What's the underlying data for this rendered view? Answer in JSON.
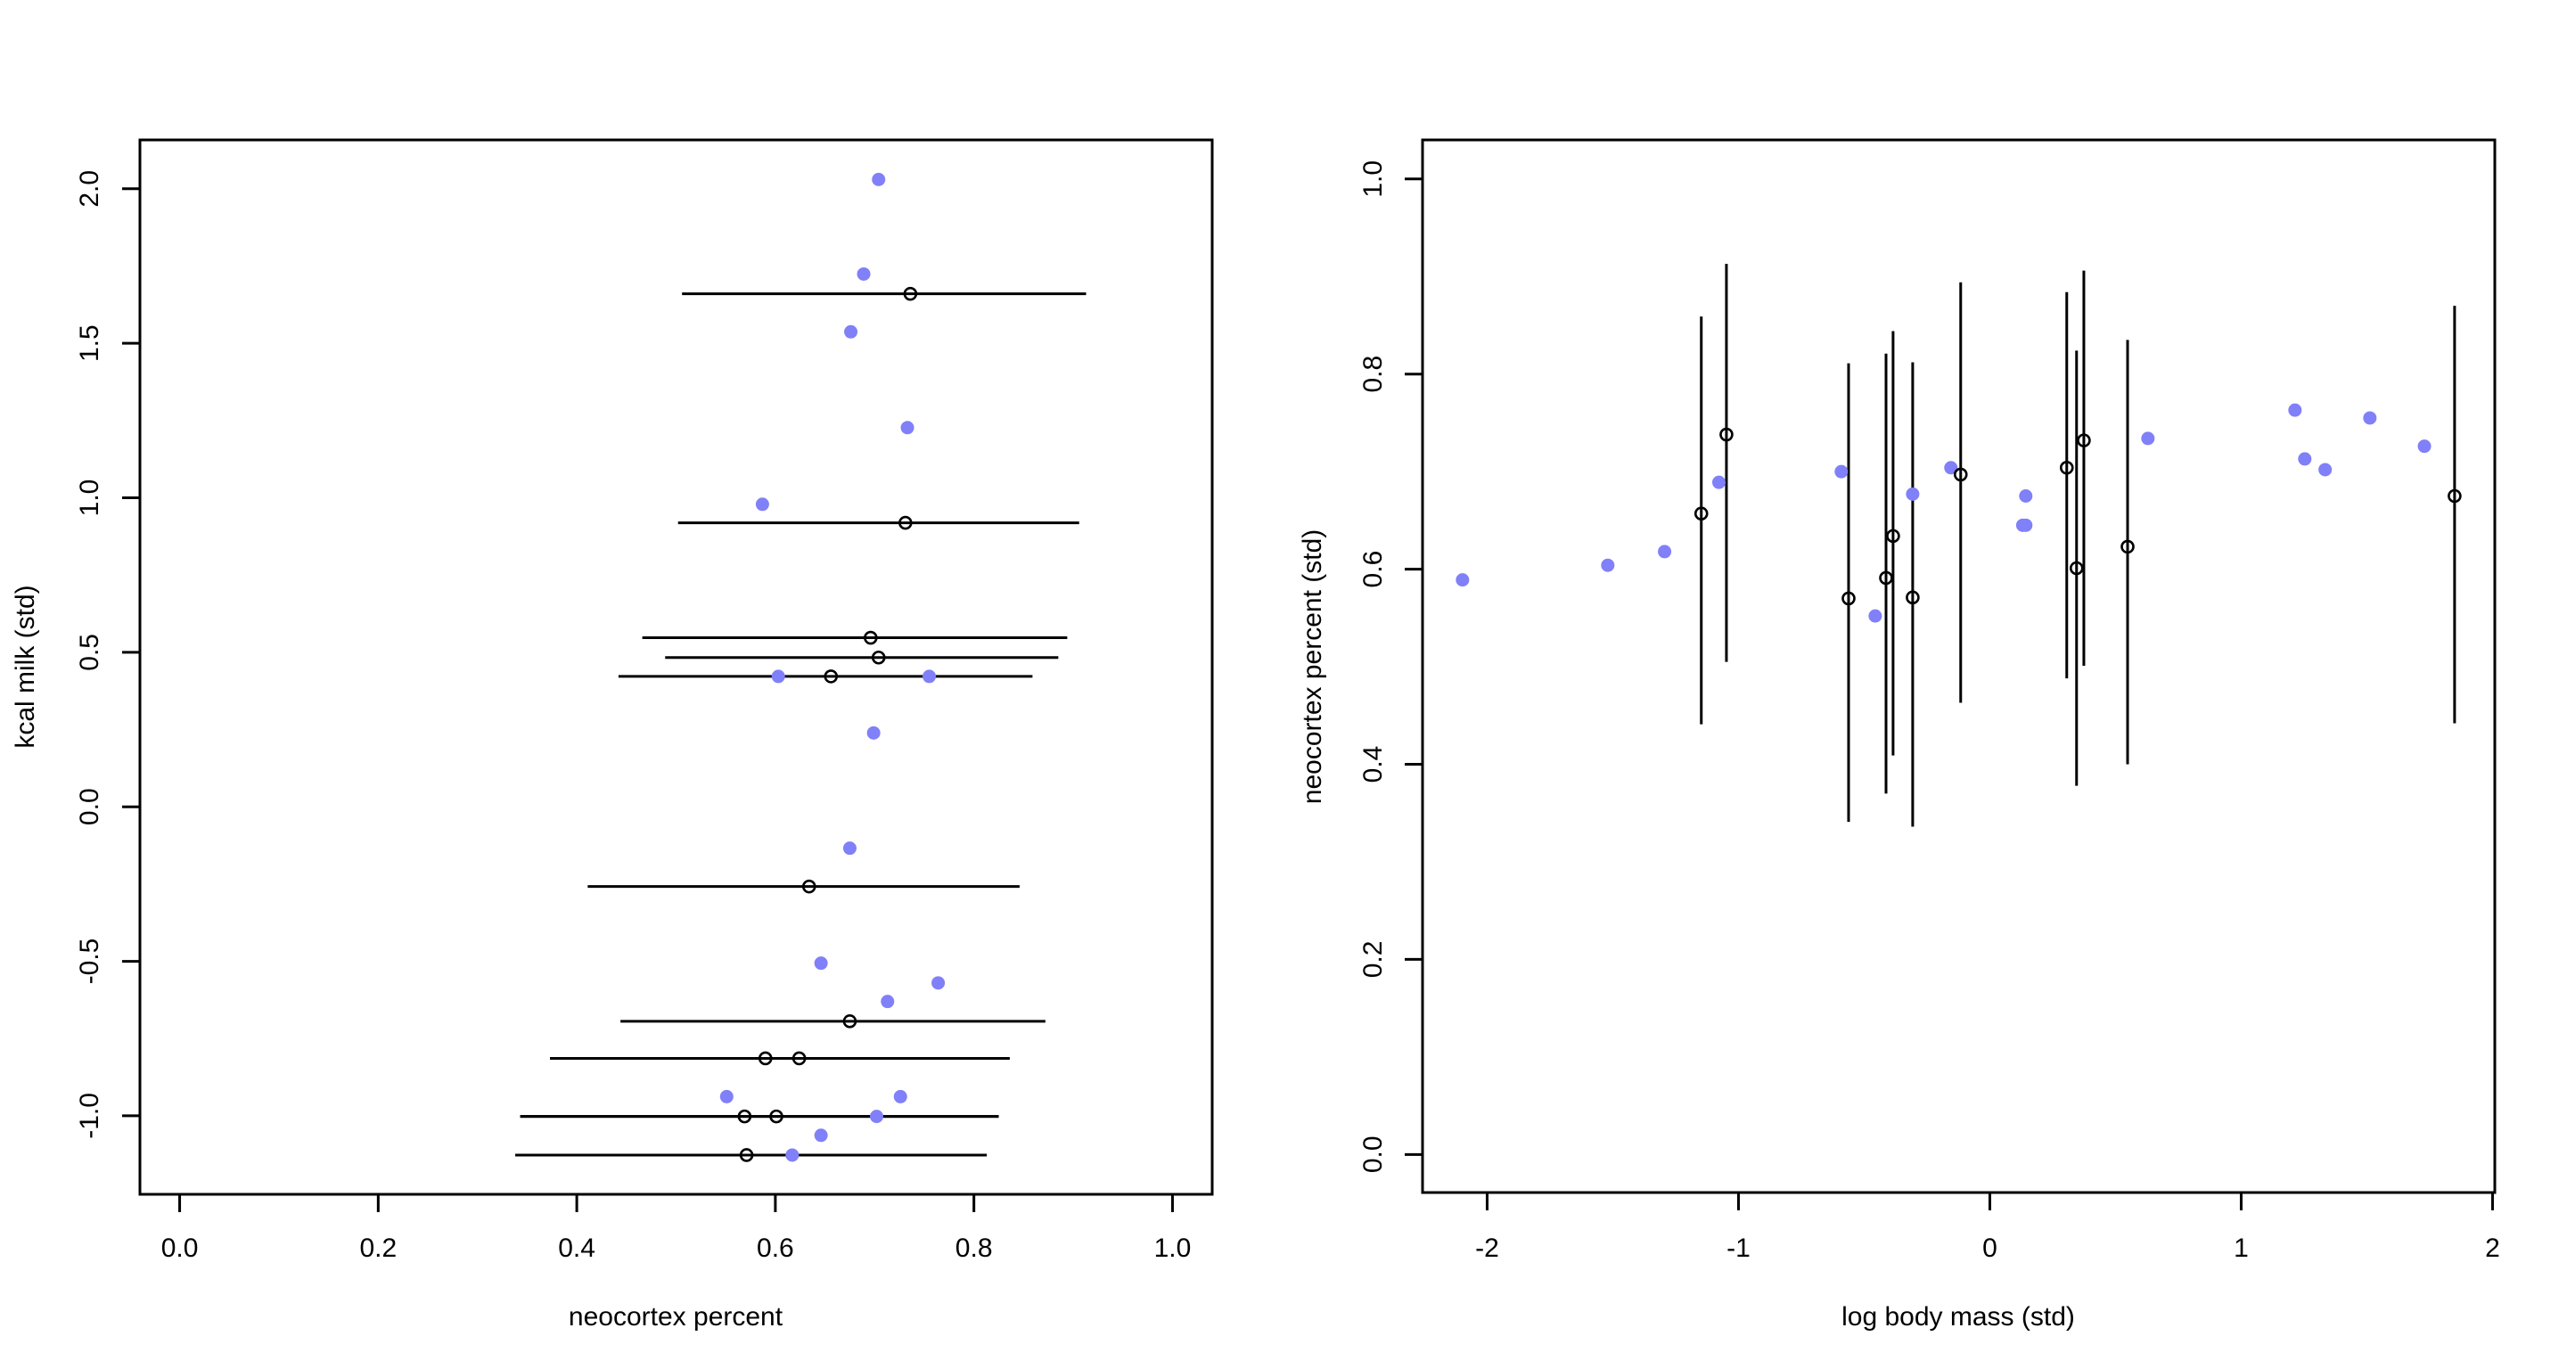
{
  "colors": {
    "observed": "#8080F8",
    "imputed": "#000000",
    "background": "#FFFFFF"
  },
  "chart_data": [
    {
      "type": "scatter",
      "id": "left",
      "title": "",
      "xlabel": "neocortex percent",
      "ylabel": "kcal milk (std)",
      "xlim": [
        -0.04,
        1.04
      ],
      "ylim": [
        -1.254,
        2.158
      ],
      "xticks": [
        0.0,
        0.2,
        0.4,
        0.6,
        0.8,
        1.0
      ],
      "xtick_labels": [
        "0.0",
        "0.2",
        "0.4",
        "0.6",
        "0.8",
        "1.0"
      ],
      "yticks": [
        -1.0,
        -0.5,
        0.0,
        0.5,
        1.0,
        1.5,
        2.0
      ],
      "ytick_labels": [
        "-1.0",
        "-0.5",
        "0.0",
        "0.5",
        "1.0",
        "1.5",
        "2.0"
      ],
      "grid": false,
      "series": [
        {
          "name": "observed",
          "marker": "filled-circle",
          "points": [
            {
              "x": 0.704,
              "y": 2.03
            },
            {
              "x": 0.689,
              "y": 1.724
            },
            {
              "x": 0.676,
              "y": 1.537
            },
            {
              "x": 0.733,
              "y": 1.227
            },
            {
              "x": 0.587,
              "y": 0.979
            },
            {
              "x": 0.603,
              "y": 0.422
            },
            {
              "x": 0.755,
              "y": 0.422
            },
            {
              "x": 0.699,
              "y": 0.239
            },
            {
              "x": 0.675,
              "y": -0.134
            },
            {
              "x": 0.646,
              "y": -0.506
            },
            {
              "x": 0.764,
              "y": -0.57
            },
            {
              "x": 0.713,
              "y": -0.63
            },
            {
              "x": 0.551,
              "y": -0.938
            },
            {
              "x": 0.726,
              "y": -0.938
            },
            {
              "x": 0.702,
              "y": -1.002
            },
            {
              "x": 0.646,
              "y": -1.063
            },
            {
              "x": 0.617,
              "y": -1.127
            }
          ]
        },
        {
          "name": "imputed",
          "marker": "open-circle",
          "interval": "horizontal",
          "points": [
            {
              "x": 0.736,
              "y": 1.66,
              "lo": 0.506,
              "hi": 0.913
            },
            {
              "x": 0.731,
              "y": 0.919,
              "lo": 0.502,
              "hi": 0.906
            },
            {
              "x": 0.696,
              "y": 0.547,
              "lo": 0.466,
              "hi": 0.894
            },
            {
              "x": 0.704,
              "y": 0.483,
              "lo": 0.489,
              "hi": 0.885
            },
            {
              "x": 0.656,
              "y": 0.422,
              "lo": 0.442,
              "hi": 0.859
            },
            {
              "x": 0.634,
              "y": -0.258,
              "lo": 0.411,
              "hi": 0.846
            },
            {
              "x": 0.675,
              "y": -0.694,
              "lo": 0.444,
              "hi": 0.872
            },
            {
              "x": 0.59,
              "y": -0.814,
              "lo": 0.373,
              "hi": 0.836
            },
            {
              "x": 0.624,
              "y": -0.814,
              "lo": 0.373,
              "hi": 0.836
            },
            {
              "x": 0.569,
              "y": -1.002,
              "lo": 0.343,
              "hi": 0.825
            },
            {
              "x": 0.601,
              "y": -1.002,
              "lo": 0.343,
              "hi": 0.825
            },
            {
              "x": 0.571,
              "y": -1.127,
              "lo": 0.338,
              "hi": 0.813
            }
          ]
        }
      ]
    },
    {
      "type": "scatter",
      "id": "right",
      "title": "",
      "xlabel": "log body mass (std)",
      "ylabel": "neocortex percent (std)",
      "xlim": [
        -2.257,
        2.009
      ],
      "ylim": [
        -0.039,
        1.04
      ],
      "xticks": [
        -2,
        -1,
        0,
        1,
        2
      ],
      "xtick_labels": [
        "-2",
        "-1",
        "0",
        "1",
        "2"
      ],
      "yticks": [
        0.0,
        0.2,
        0.4,
        0.6,
        0.8,
        1.0
      ],
      "ytick_labels": [
        "0.0",
        "0.2",
        "0.4",
        "0.6",
        "0.8",
        "1.0"
      ],
      "grid": false,
      "series": [
        {
          "name": "observed",
          "marker": "filled-circle",
          "points": [
            {
              "x": -2.098,
              "y": 0.589
            },
            {
              "x": -1.52,
              "y": 0.604
            },
            {
              "x": -1.294,
              "y": 0.618
            },
            {
              "x": -1.078,
              "y": 0.689
            },
            {
              "x": -0.591,
              "y": 0.7
            },
            {
              "x": -0.456,
              "y": 0.552
            },
            {
              "x": -0.307,
              "y": 0.677
            },
            {
              "x": -0.155,
              "y": 0.704
            },
            {
              "x": 0.143,
              "y": 0.675
            },
            {
              "x": 0.131,
              "y": 0.645
            },
            {
              "x": 0.143,
              "y": 0.645
            },
            {
              "x": 0.629,
              "y": 0.734
            },
            {
              "x": 1.214,
              "y": 0.763
            },
            {
              "x": 1.253,
              "y": 0.713
            },
            {
              "x": 1.334,
              "y": 0.702
            },
            {
              "x": 1.512,
              "y": 0.755
            },
            {
              "x": 1.729,
              "y": 0.726
            }
          ]
        },
        {
          "name": "imputed",
          "marker": "open-circle",
          "interval": "vertical",
          "points": [
            {
              "x": -1.148,
              "y": 0.657,
              "lo": 0.441,
              "hi": 0.859
            },
            {
              "x": -1.048,
              "y": 0.738,
              "lo": 0.505,
              "hi": 0.913
            },
            {
              "x": -0.562,
              "y": 0.57,
              "lo": 0.341,
              "hi": 0.811
            },
            {
              "x": -0.413,
              "y": 0.591,
              "lo": 0.37,
              "hi": 0.821
            },
            {
              "x": -0.385,
              "y": 0.634,
              "lo": 0.409,
              "hi": 0.844
            },
            {
              "x": -0.307,
              "y": 0.571,
              "lo": 0.336,
              "hi": 0.812
            },
            {
              "x": -0.116,
              "y": 0.697,
              "lo": 0.463,
              "hi": 0.894
            },
            {
              "x": 0.306,
              "y": 0.704,
              "lo": 0.488,
              "hi": 0.884
            },
            {
              "x": 0.345,
              "y": 0.601,
              "lo": 0.378,
              "hi": 0.824
            },
            {
              "x": 0.374,
              "y": 0.732,
              "lo": 0.501,
              "hi": 0.906
            },
            {
              "x": 0.548,
              "y": 0.623,
              "lo": 0.4,
              "hi": 0.835
            },
            {
              "x": 1.849,
              "y": 0.675,
              "lo": 0.442,
              "hi": 0.87
            }
          ]
        }
      ]
    }
  ]
}
